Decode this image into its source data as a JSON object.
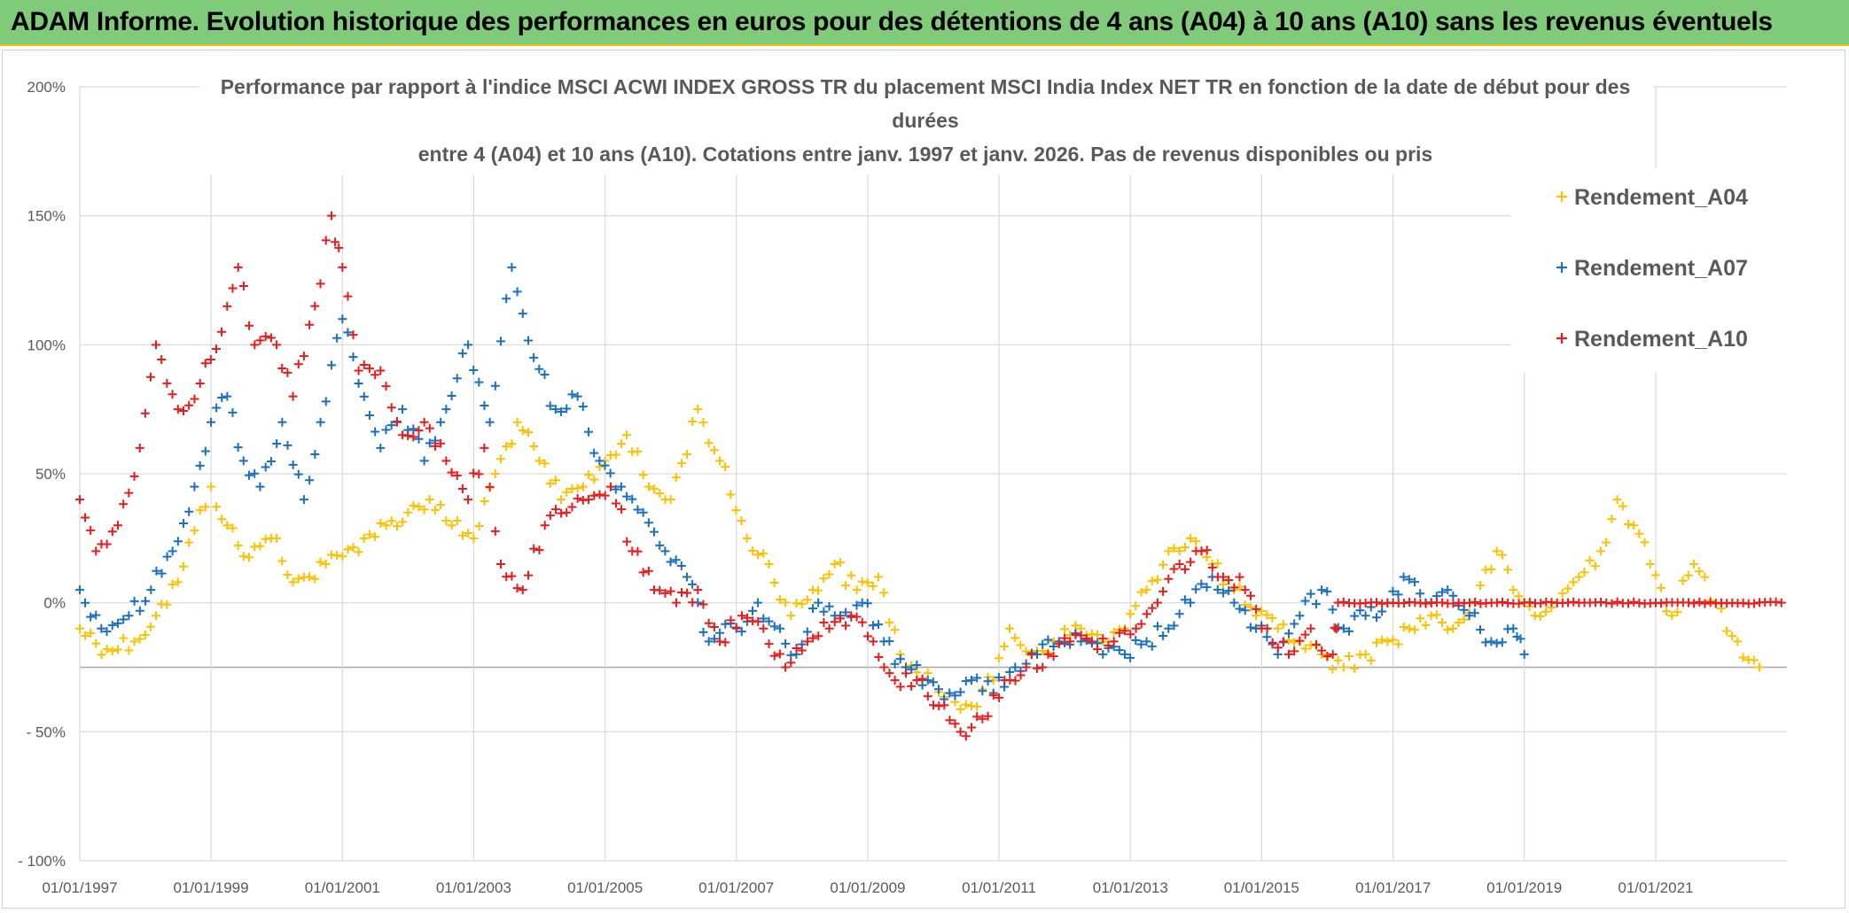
{
  "banner": {
    "title": "ADAM Informe. Evolution historique des performances en euros pour des détentions de 4 ans (A04) à 10 ans (A10) sans les revenus éventuels",
    "background": "#7fcb7a",
    "accent": "#f0c020"
  },
  "chart_data": {
    "type": "scatter",
    "title": [
      "Performance par rapport à l'indice MSCI ACWI INDEX GROSS TR  du placement MSCI India Index NET TR en fonction de la date de début pour des",
      "durées",
      "entre 4 (A04) et 10 ans (A10). Cotations entre janv. 1997 et janv. 2026. Pas de revenus disponibles ou pris"
    ],
    "xlabel": "",
    "ylabel": "",
    "xlim": [
      "1997-01-01",
      "2023-01-01"
    ],
    "ylim": [
      -100,
      200
    ],
    "x_ticks": [
      "01/01/1997",
      "01/01/1999",
      "01/01/2001",
      "01/01/2003",
      "01/01/2005",
      "01/01/2007",
      "01/01/2009",
      "01/01/2011",
      "01/01/2013",
      "01/01/2015",
      "01/01/2017",
      "01/01/2019",
      "01/01/2021"
    ],
    "y_ticks": [
      {
        "value": 200,
        "label": "200%"
      },
      {
        "value": 150,
        "label": "150%"
      },
      {
        "value": 100,
        "label": "100%"
      },
      {
        "value": 50,
        "label": "50%"
      },
      {
        "value": 0,
        "label": "0%"
      },
      {
        "value": -50,
        "label": "- 50%"
      },
      {
        "value": -100,
        "label": "- 100%"
      }
    ],
    "reference_line_y": -25,
    "grid": true,
    "legend_position": "right",
    "marker": "+",
    "series": [
      {
        "name": "Rendement_A04",
        "color": "#ffc000",
        "points": [
          [
            "1997-01-01",
            -10
          ],
          [
            "1997-06-01",
            -18
          ],
          [
            "1997-11-01",
            -15
          ],
          [
            "1998-03-01",
            -5
          ],
          [
            "1998-07-01",
            8
          ],
          [
            "1998-10-01",
            28
          ],
          [
            "1999-01-01",
            45
          ],
          [
            "1999-04-01",
            30
          ],
          [
            "1999-07-01",
            18
          ],
          [
            "1999-10-01",
            22
          ],
          [
            "2000-01-01",
            25
          ],
          [
            "2000-04-01",
            8
          ],
          [
            "2000-07-01",
            10
          ],
          [
            "2000-10-01",
            15
          ],
          [
            "2001-01-01",
            18
          ],
          [
            "2001-05-01",
            25
          ],
          [
            "2001-09-01",
            30
          ],
          [
            "2002-01-01",
            35
          ],
          [
            "2002-05-01",
            40
          ],
          [
            "2002-09-01",
            30
          ],
          [
            "2003-01-01",
            25
          ],
          [
            "2003-05-01",
            50
          ],
          [
            "2003-09-01",
            70
          ],
          [
            "2004-01-01",
            55
          ],
          [
            "2004-05-01",
            40
          ],
          [
            "2004-09-01",
            45
          ],
          [
            "2005-01-01",
            55
          ],
          [
            "2005-05-01",
            65
          ],
          [
            "2005-09-01",
            45
          ],
          [
            "2006-01-01",
            40
          ],
          [
            "2006-06-01",
            75
          ],
          [
            "2006-10-01",
            55
          ],
          [
            "2007-03-01",
            25
          ],
          [
            "2007-07-01",
            15
          ],
          [
            "2007-11-01",
            -5
          ],
          [
            "2008-03-01",
            5
          ],
          [
            "2008-07-01",
            15
          ],
          [
            "2008-11-01",
            5
          ],
          [
            "2009-03-01",
            10
          ],
          [
            "2009-07-01",
            -20
          ],
          [
            "2009-11-01",
            -30
          ],
          [
            "2010-04-01",
            -35
          ],
          [
            "2010-08-01",
            -40
          ],
          [
            "2010-12-01",
            -30
          ],
          [
            "2011-03-01",
            -10
          ],
          [
            "2011-07-01",
            -20
          ],
          [
            "2011-11-01",
            -15
          ],
          [
            "2012-04-01",
            -10
          ],
          [
            "2012-08-01",
            -15
          ],
          [
            "2012-12-01",
            -10
          ],
          [
            "2013-04-01",
            5
          ],
          [
            "2013-08-01",
            20
          ],
          [
            "2013-12-01",
            25
          ],
          [
            "2014-04-01",
            15
          ],
          [
            "2014-08-01",
            5
          ],
          [
            "2014-12-01",
            -5
          ],
          [
            "2015-04-01",
            -10
          ],
          [
            "2015-08-01",
            -15
          ],
          [
            "2015-12-01",
            -20
          ],
          [
            "2016-04-01",
            -25
          ],
          [
            "2016-08-01",
            -20
          ],
          [
            "2016-12-01",
            -15
          ],
          [
            "2017-04-01",
            -10
          ],
          [
            "2017-08-01",
            -5
          ],
          [
            "2017-12-01",
            -10
          ],
          [
            "2018-04-01",
            0
          ],
          [
            "2018-08-01",
            20
          ],
          [
            "2018-11-01",
            5
          ],
          [
            "2019-03-01",
            -5
          ],
          [
            "2019-07-01",
            0
          ],
          [
            "2019-11-01",
            10
          ],
          [
            "2020-03-01",
            20
          ],
          [
            "2020-06-01",
            40
          ],
          [
            "2020-09-01",
            30
          ],
          [
            "2020-12-01",
            15
          ],
          [
            "2021-04-01",
            -5
          ],
          [
            "2021-08-01",
            15
          ],
          [
            "2021-12-01",
            0
          ],
          [
            "2022-04-01",
            -15
          ],
          [
            "2022-08-01",
            -25
          ]
        ]
      },
      {
        "name": "Rendement_A07",
        "color": "#1a6fbf",
        "points": [
          [
            "1997-01-01",
            5
          ],
          [
            "1997-05-01",
            -10
          ],
          [
            "1997-10-01",
            -5
          ],
          [
            "1998-02-01",
            5
          ],
          [
            "1998-06-01",
            20
          ],
          [
            "1998-10-01",
            45
          ],
          [
            "1999-01-01",
            70
          ],
          [
            "1999-04-01",
            80
          ],
          [
            "1999-07-01",
            55
          ],
          [
            "1999-10-01",
            45
          ],
          [
            "2000-02-01",
            70
          ],
          [
            "2000-06-01",
            40
          ],
          [
            "2000-09-01",
            70
          ],
          [
            "2001-01-01",
            110
          ],
          [
            "2001-04-01",
            85
          ],
          [
            "2001-08-01",
            60
          ],
          [
            "2001-12-01",
            75
          ],
          [
            "2002-04-01",
            55
          ],
          [
            "2002-08-01",
            75
          ],
          [
            "2002-12-01",
            100
          ],
          [
            "2003-04-01",
            70
          ],
          [
            "2003-08-01",
            130
          ],
          [
            "2003-12-01",
            95
          ],
          [
            "2004-04-01",
            75
          ],
          [
            "2004-08-01",
            80
          ],
          [
            "2004-12-01",
            55
          ],
          [
            "2005-04-01",
            45
          ],
          [
            "2005-08-01",
            35
          ],
          [
            "2005-12-01",
            20
          ],
          [
            "2006-04-01",
            10
          ],
          [
            "2006-08-01",
            -15
          ],
          [
            "2007-01-01",
            -10
          ],
          [
            "2007-05-01",
            0
          ],
          [
            "2007-09-01",
            -10
          ],
          [
            "2007-12-01",
            -20
          ],
          [
            "2008-04-01",
            0
          ],
          [
            "2008-08-01",
            -5
          ],
          [
            "2008-12-01",
            0
          ],
          [
            "2009-04-01",
            -15
          ],
          [
            "2009-08-01",
            -25
          ],
          [
            "2009-12-01",
            -30
          ],
          [
            "2010-04-01",
            -35
          ],
          [
            "2010-08-01",
            -30
          ],
          [
            "2010-12-01",
            -35
          ],
          [
            "2011-04-01",
            -25
          ],
          [
            "2011-08-01",
            -20
          ],
          [
            "2011-12-01",
            -15
          ],
          [
            "2012-04-01",
            -15
          ],
          [
            "2012-08-01",
            -20
          ],
          [
            "2012-12-01",
            -20
          ],
          [
            "2013-04-01",
            -15
          ],
          [
            "2013-08-01",
            -10
          ],
          [
            "2013-12-01",
            0
          ],
          [
            "2014-04-01",
            10
          ],
          [
            "2014-08-01",
            0
          ],
          [
            "2014-12-01",
            -10
          ],
          [
            "2015-04-01",
            -20
          ],
          [
            "2015-08-01",
            -5
          ],
          [
            "2015-12-01",
            5
          ],
          [
            "2016-04-01",
            -10
          ],
          [
            "2016-08-01",
            -5
          ],
          [
            "2016-12-01",
            0
          ],
          [
            "2017-03-01",
            10
          ],
          [
            "2017-07-01",
            0
          ],
          [
            "2017-11-01",
            5
          ],
          [
            "2018-03-01",
            -5
          ],
          [
            "2018-07-01",
            -15
          ],
          [
            "2018-11-01",
            -10
          ],
          [
            "2019-01-01",
            -20
          ]
        ]
      },
      {
        "name": "Rendement_A10",
        "color": "#e81c1c",
        "points": [
          [
            "1997-01-01",
            40
          ],
          [
            "1997-04-01",
            20
          ],
          [
            "1997-08-01",
            30
          ],
          [
            "1997-12-01",
            60
          ],
          [
            "1998-03-01",
            100
          ],
          [
            "1998-07-01",
            75
          ],
          [
            "1998-11-01",
            85
          ],
          [
            "1999-03-01",
            105
          ],
          [
            "1999-06-01",
            130
          ],
          [
            "1999-09-01",
            100
          ],
          [
            "2000-01-01",
            100
          ],
          [
            "2000-04-01",
            80
          ],
          [
            "2000-08-01",
            115
          ],
          [
            "2000-11-01",
            150
          ],
          [
            "2001-01-01",
            130
          ],
          [
            "2001-04-01",
            90
          ],
          [
            "2001-08-01",
            90
          ],
          [
            "2001-12-01",
            65
          ],
          [
            "2002-04-01",
            70
          ],
          [
            "2002-08-01",
            55
          ],
          [
            "2002-12-01",
            40
          ],
          [
            "2003-03-01",
            60
          ],
          [
            "2003-06-01",
            15
          ],
          [
            "2003-10-01",
            5
          ],
          [
            "2004-02-01",
            30
          ],
          [
            "2004-06-01",
            35
          ],
          [
            "2004-10-01",
            40
          ],
          [
            "2005-02-01",
            45
          ],
          [
            "2005-06-01",
            20
          ],
          [
            "2005-10-01",
            5
          ],
          [
            "2006-02-01",
            0
          ],
          [
            "2006-06-01",
            5
          ],
          [
            "2006-10-01",
            -15
          ],
          [
            "2007-02-01",
            -5
          ],
          [
            "2007-06-01",
            -10
          ],
          [
            "2007-10-01",
            -25
          ],
          [
            "2008-02-01",
            -15
          ],
          [
            "2008-06-01",
            -10
          ],
          [
            "2008-10-01",
            -5
          ],
          [
            "2009-02-01",
            -15
          ],
          [
            "2009-06-01",
            -30
          ],
          [
            "2009-10-01",
            -30
          ],
          [
            "2010-02-01",
            -40
          ],
          [
            "2010-06-01",
            -50
          ],
          [
            "2010-10-01",
            -45
          ],
          [
            "2011-02-01",
            -30
          ],
          [
            "2011-06-01",
            -25
          ],
          [
            "2011-10-01",
            -20
          ],
          [
            "2012-02-01",
            -15
          ],
          [
            "2012-06-01",
            -15
          ],
          [
            "2012-10-01",
            -15
          ],
          [
            "2013-02-01",
            -10
          ],
          [
            "2013-06-01",
            0
          ],
          [
            "2013-10-01",
            15
          ],
          [
            "2014-02-01",
            20
          ],
          [
            "2014-06-01",
            10
          ],
          [
            "2014-10-01",
            5
          ],
          [
            "2015-02-01",
            -10
          ],
          [
            "2015-06-01",
            -20
          ],
          [
            "2015-10-01",
            -10
          ],
          [
            "2016-02-01",
            -20
          ],
          [
            "2016-03-01",
            0
          ],
          [
            "2017-01-01",
            0
          ],
          [
            "2018-01-01",
            0
          ],
          [
            "2019-01-01",
            0
          ],
          [
            "2020-01-01",
            0
          ],
          [
            "2021-01-01",
            0
          ],
          [
            "2022-01-01",
            0
          ],
          [
            "2022-12-01",
            0
          ]
        ]
      }
    ]
  }
}
